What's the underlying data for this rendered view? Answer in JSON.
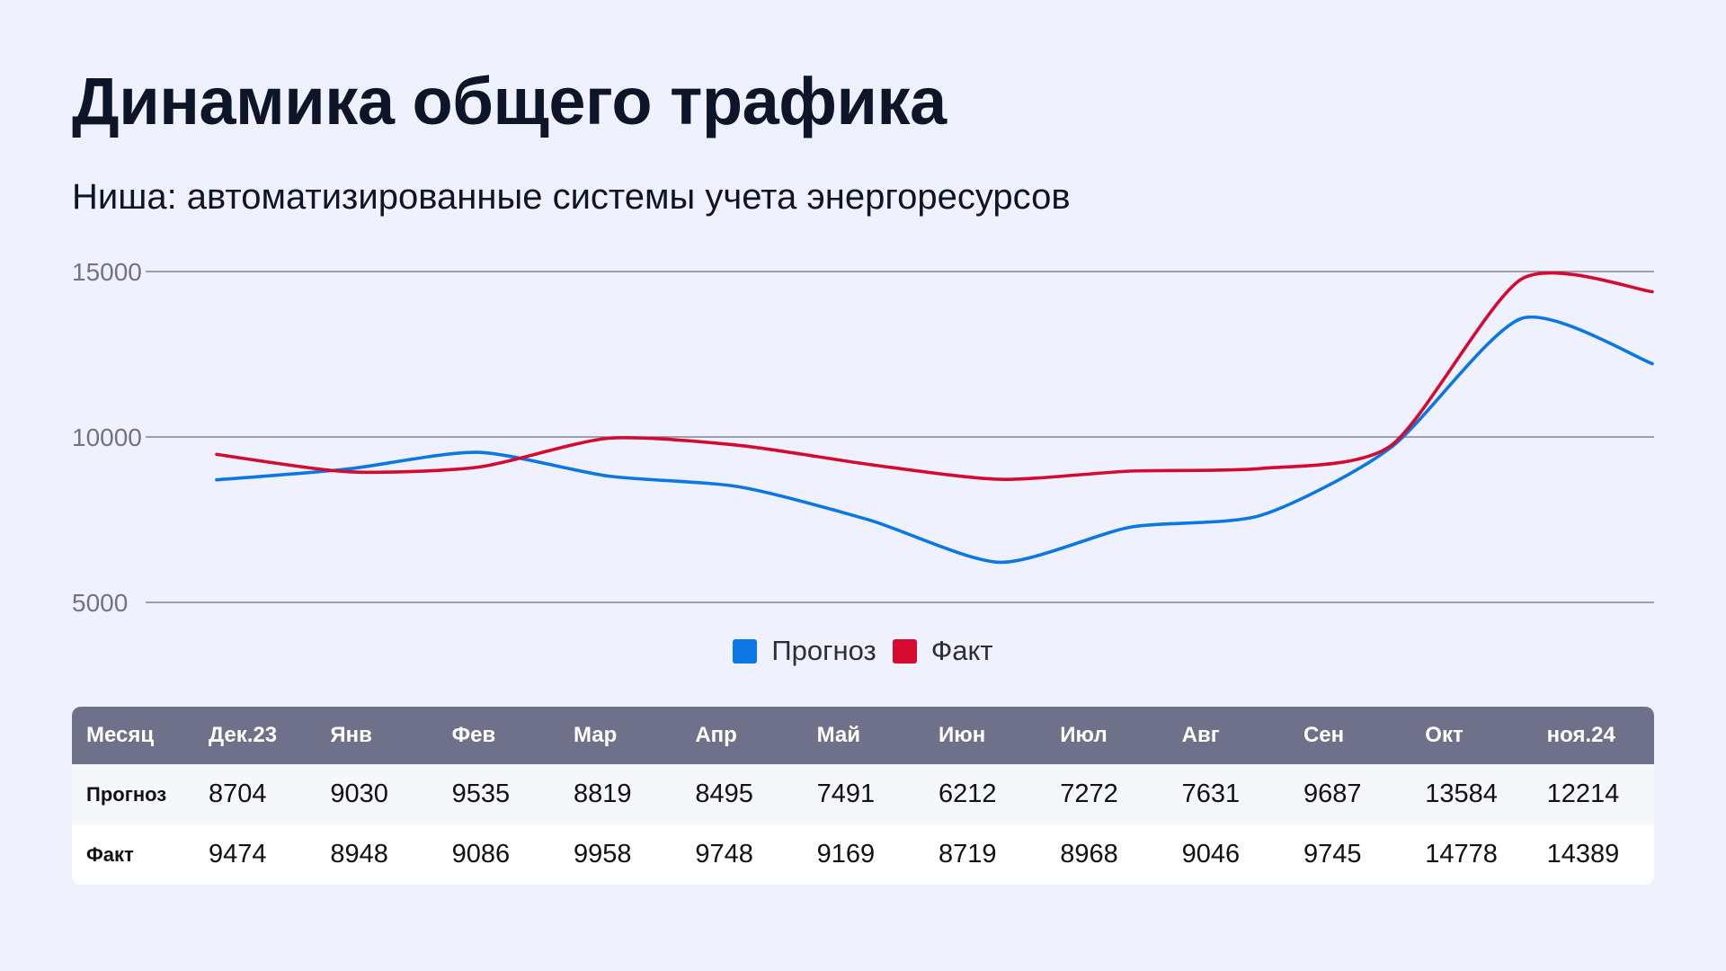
{
  "header": {
    "title": "Динамика общего трафика",
    "subtitle": "Ниша: автоматизированные системы учета энергоресурсов"
  },
  "colors": {
    "forecast": "#0a77e5",
    "fact": "#d50a2e",
    "grid": "#6b6f7e",
    "tick_text": "#6e7488",
    "table_header_bg": "#6f7089"
  },
  "chart_data": {
    "type": "line",
    "title": "Динамика общего трафика",
    "subtitle": "Ниша: автоматизированные системы учета энергоресурсов",
    "categories": [
      "Дек.23",
      "Янв",
      "Фев",
      "Мар",
      "Апр",
      "Май",
      "Июн",
      "Июл",
      "Авг",
      "Сен",
      "Окт",
      "ноя.24"
    ],
    "series": [
      {
        "name": "Прогноз",
        "color": "#0a77e5",
        "values": [
          8704,
          9030,
          9535,
          8819,
          8495,
          7491,
          6212,
          7272,
          7631,
          9687,
          13584,
          12214
        ]
      },
      {
        "name": "Факт",
        "color": "#d50a2e",
        "values": [
          9474,
          8948,
          9086,
          9958,
          9748,
          9169,
          8719,
          8968,
          9046,
          9745,
          14778,
          14389
        ]
      }
    ],
    "yticks": [
      "15000",
      "10000",
      "5000"
    ],
    "ylim": [
      5000,
      15000
    ],
    "xlabel": "",
    "ylabel": "",
    "grid": true,
    "legend_position": "bottom-center"
  },
  "legend": {
    "items": [
      {
        "label": "Прогноз",
        "color": "#0a77e5"
      },
      {
        "label": "Факт",
        "color": "#d50a2e"
      }
    ]
  },
  "table": {
    "header_label": "Месяц",
    "months": [
      "Дек.23",
      "Янв",
      "Фев",
      "Мар",
      "Апр",
      "Май",
      "Июн",
      "Июл",
      "Авг",
      "Сен",
      "Окт",
      "ноя.24"
    ],
    "rows": [
      {
        "label": "Прогноз",
        "values": [
          "8704",
          "9030",
          "9535",
          "8819",
          "8495",
          "7491",
          "6212",
          "7272",
          "7631",
          "9687",
          "13584",
          "12214"
        ]
      },
      {
        "label": "Факт",
        "values": [
          "9474",
          "8948",
          "9086",
          "9958",
          "9748",
          "9169",
          "8719",
          "8968",
          "9046",
          "9745",
          "14778",
          "14389"
        ]
      }
    ]
  }
}
